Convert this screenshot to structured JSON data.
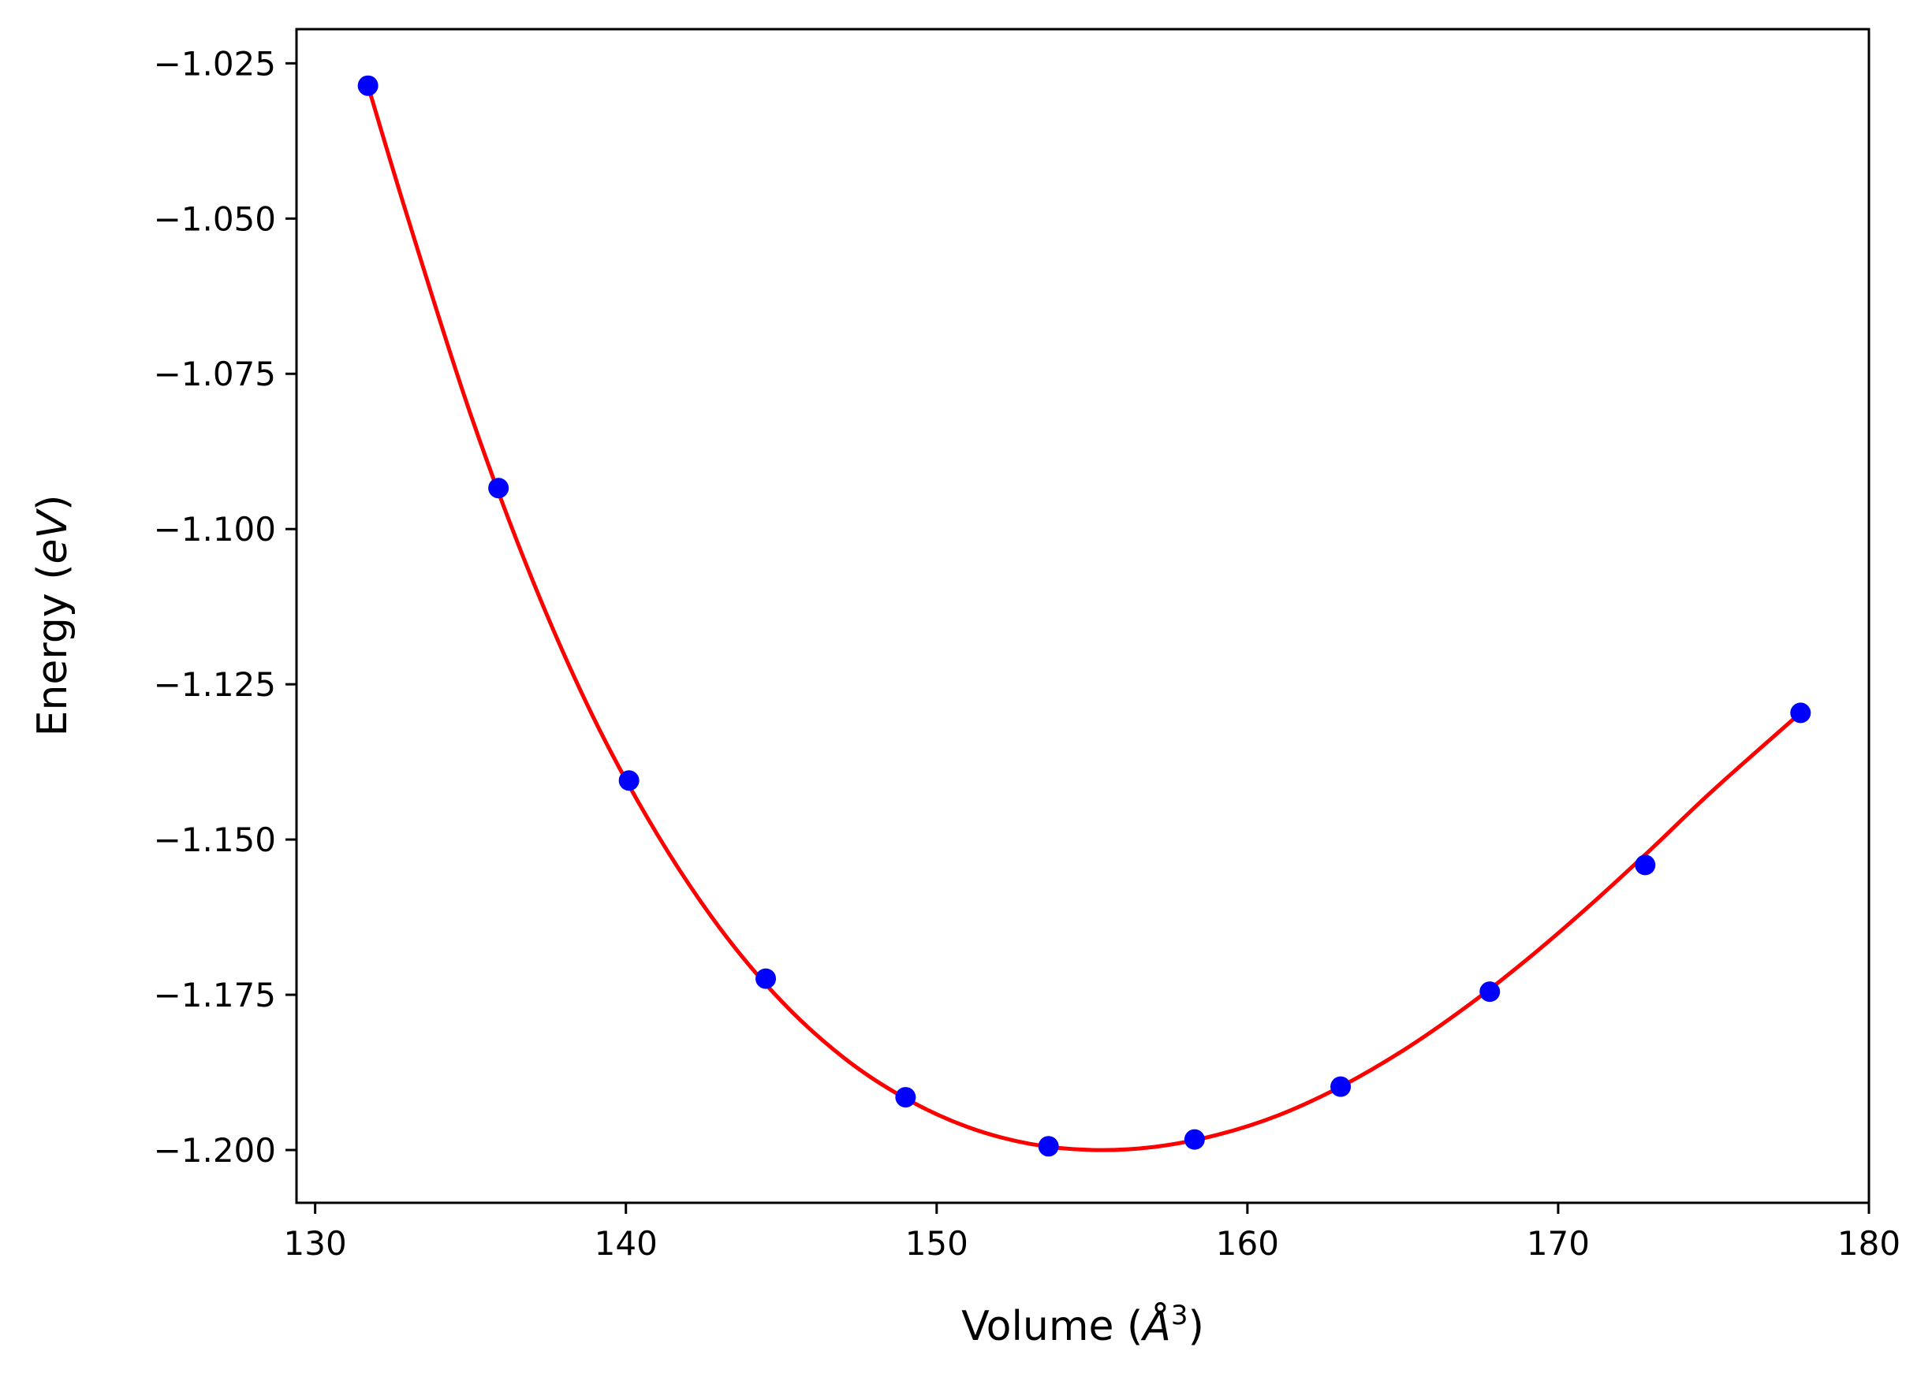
{
  "chart_data": {
    "type": "scatter",
    "title": "",
    "xlabel": "Volume (Å³)",
    "xlabel_parts": {
      "prefix": "Volume (",
      "symbol": "Å",
      "exponent": "3",
      "suffix": ")"
    },
    "ylabel": "Energy (eV)",
    "ylabel_parts": {
      "prefix": "Energy (",
      "unit": "eV",
      "suffix": ")"
    },
    "xlim": [
      129.4,
      180.0
    ],
    "ylim": [
      -1.2085,
      -1.0195
    ],
    "x_ticks": [
      130,
      140,
      150,
      160,
      170,
      180
    ],
    "x_tick_labels": [
      "130",
      "140",
      "150",
      "160",
      "170",
      "180"
    ],
    "y_ticks": [
      -1.2,
      -1.175,
      -1.15,
      -1.125,
      -1.1,
      -1.075,
      -1.05,
      -1.025
    ],
    "y_tick_labels": [
      "−1.200",
      "−1.175",
      "−1.150",
      "−1.125",
      "−1.100",
      "−1.075",
      "−1.050",
      "−1.025"
    ],
    "grid": false,
    "legend": "none",
    "series": [
      {
        "kind": "points",
        "color": "#0000ff",
        "x": [
          131.7,
          135.9,
          140.1,
          144.5,
          149.0,
          153.6,
          158.3,
          163.0,
          167.8,
          172.8,
          177.8
        ],
        "y": [
          -1.0286,
          -1.0934,
          -1.1405,
          -1.1724,
          -1.1915,
          -1.1994,
          -1.1983,
          -1.1898,
          -1.1745,
          -1.1541,
          -1.1296
        ]
      },
      {
        "kind": "fit-curve",
        "color": "#ff0000",
        "x": [
          131.7,
          133.0,
          135.0,
          137.0,
          139.0,
          141.0,
          143.0,
          145.0,
          147.0,
          149.0,
          151.0,
          153.0,
          155.0,
          157.0,
          159.0,
          161.0,
          163.0,
          165.0,
          167.0,
          169.0,
          171.0,
          173.0,
          175.0,
          177.8
        ],
        "y": [
          -1.0286,
          -1.0502,
          -1.0815,
          -1.1083,
          -1.1308,
          -1.1491,
          -1.1641,
          -1.176,
          -1.1851,
          -1.1917,
          -1.1963,
          -1.199,
          -1.2,
          -1.1995,
          -1.1976,
          -1.1944,
          -1.1898,
          -1.184,
          -1.1771,
          -1.1693,
          -1.1607,
          -1.1515,
          -1.142,
          -1.1296
        ]
      }
    ]
  }
}
